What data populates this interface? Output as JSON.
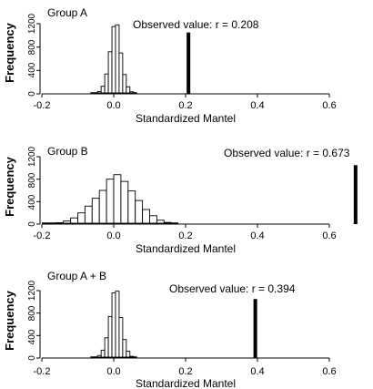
{
  "chart_data": [
    {
      "type": "bar",
      "title": "Group A",
      "xlabel": "Standardized Mantel",
      "ylabel": "Frequency",
      "xlim": [
        -0.2,
        0.6
      ],
      "ylim": [
        0,
        1200
      ],
      "x_ticks": [
        "-0.2",
        "0.0",
        "0.2",
        "0.4",
        "0.6"
      ],
      "y_ticks": [
        "0",
        "400",
        "800",
        "1200"
      ],
      "bin_width": 0.01,
      "bins": [
        {
          "x": -0.06,
          "value": 2
        },
        {
          "x": -0.05,
          "value": 10
        },
        {
          "x": -0.04,
          "value": 40
        },
        {
          "x": -0.03,
          "value": 130
        },
        {
          "x": -0.02,
          "value": 340
        },
        {
          "x": -0.01,
          "value": 720
        },
        {
          "x": 0.0,
          "value": 1150
        },
        {
          "x": 0.01,
          "value": 1180
        },
        {
          "x": 0.02,
          "value": 700
        },
        {
          "x": 0.03,
          "value": 330
        },
        {
          "x": 0.04,
          "value": 120
        },
        {
          "x": 0.05,
          "value": 35
        },
        {
          "x": 0.06,
          "value": 8
        }
      ],
      "observed": {
        "value": 0.208,
        "label": "Observed value:  r = 0.208"
      }
    },
    {
      "type": "bar",
      "title": "Group B",
      "xlabel": "Standardized Mantel",
      "ylabel": "Frequency",
      "xlim": [
        -0.2,
        0.6
      ],
      "ylim": [
        0,
        1200
      ],
      "x_ticks": [
        "-0.2",
        "0.0",
        "0.2",
        "0.4",
        "0.6"
      ],
      "y_ticks": [
        "0",
        "400",
        "800",
        "1200"
      ],
      "bin_width": 0.02,
      "bins": [
        {
          "x": -0.19,
          "value": 4
        },
        {
          "x": -0.17,
          "value": 10
        },
        {
          "x": -0.15,
          "value": 25
        },
        {
          "x": -0.13,
          "value": 55
        },
        {
          "x": -0.11,
          "value": 110
        },
        {
          "x": -0.09,
          "value": 200
        },
        {
          "x": -0.07,
          "value": 320
        },
        {
          "x": -0.05,
          "value": 460
        },
        {
          "x": -0.03,
          "value": 600
        },
        {
          "x": -0.01,
          "value": 800
        },
        {
          "x": 0.01,
          "value": 880
        },
        {
          "x": 0.03,
          "value": 760
        },
        {
          "x": 0.05,
          "value": 590
        },
        {
          "x": 0.07,
          "value": 420
        },
        {
          "x": 0.09,
          "value": 260
        },
        {
          "x": 0.11,
          "value": 150
        },
        {
          "x": 0.13,
          "value": 70
        },
        {
          "x": 0.15,
          "value": 30
        },
        {
          "x": 0.17,
          "value": 10
        }
      ],
      "observed": {
        "value": 0.673,
        "label": "Observed value:  r = 0.673"
      }
    },
    {
      "type": "bar",
      "title": "Group A + B",
      "xlabel": "Standardized Mantel",
      "ylabel": "Frequency",
      "xlim": [
        -0.2,
        0.6
      ],
      "ylim": [
        0,
        1200
      ],
      "x_ticks": [
        "-0.2",
        "0.0",
        "0.2",
        "0.4",
        "0.6"
      ],
      "y_ticks": [
        "0",
        "400",
        "800",
        "1200"
      ],
      "bin_width": 0.01,
      "bins": [
        {
          "x": -0.06,
          "value": 3
        },
        {
          "x": -0.05,
          "value": 12
        },
        {
          "x": -0.04,
          "value": 45
        },
        {
          "x": -0.03,
          "value": 140
        },
        {
          "x": -0.02,
          "value": 360
        },
        {
          "x": -0.01,
          "value": 740
        },
        {
          "x": 0.0,
          "value": 1160
        },
        {
          "x": 0.01,
          "value": 1190
        },
        {
          "x": 0.02,
          "value": 720
        },
        {
          "x": 0.03,
          "value": 330
        },
        {
          "x": 0.04,
          "value": 120
        },
        {
          "x": 0.05,
          "value": 30
        },
        {
          "x": 0.06,
          "value": 6
        }
      ],
      "observed": {
        "value": 0.394,
        "label": "Observed value:  r = 0.394"
      }
    }
  ]
}
